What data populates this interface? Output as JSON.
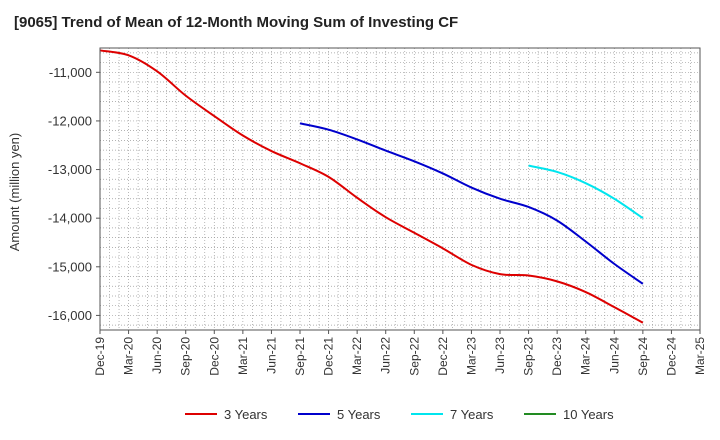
{
  "chart_data": {
    "type": "line",
    "title": "[9065]  Trend of Mean of 12-Month Moving Sum of Investing CF",
    "xlabel": "",
    "ylabel": "Amount (million yen)",
    "ylim": [
      -16300,
      -10500
    ],
    "yticks": [
      -11000,
      -12000,
      -13000,
      -14000,
      -15000,
      -16000
    ],
    "ytick_labels": [
      "-11,000",
      "-12,000",
      "-13,000",
      "-14,000",
      "-15,000",
      "-16,000"
    ],
    "x_ticks": [
      "Dec-19",
      "Mar-20",
      "Jun-20",
      "Sep-20",
      "Dec-20",
      "Mar-21",
      "Jun-21",
      "Sep-21",
      "Dec-21",
      "Mar-22",
      "Jun-22",
      "Sep-22",
      "Dec-22",
      "Mar-23",
      "Jun-23",
      "Sep-23",
      "Dec-23",
      "Mar-24",
      "Jun-24",
      "Sep-24",
      "Dec-24",
      "Mar-25"
    ],
    "grid": true,
    "legend_position": "bottom",
    "series": [
      {
        "name": "3 Years",
        "color": "#dd0000",
        "x": [
          "Dec-19",
          "Mar-20",
          "Jun-20",
          "Sep-20",
          "Dec-20",
          "Mar-21",
          "Jun-21",
          "Sep-21",
          "Dec-21",
          "Mar-22",
          "Jun-22",
          "Sep-22",
          "Dec-22",
          "Mar-23",
          "Jun-23",
          "Sep-23",
          "Dec-23",
          "Mar-24",
          "Jun-24",
          "Sep-24"
        ],
        "values": [
          -10550,
          -10650,
          -10980,
          -11480,
          -11900,
          -12300,
          -12620,
          -12870,
          -13150,
          -13580,
          -13980,
          -14300,
          -14620,
          -14960,
          -15150,
          -15180,
          -15300,
          -15520,
          -15830,
          -16150
        ]
      },
      {
        "name": "5 Years",
        "color": "#0000cc",
        "x": [
          "Sep-21",
          "Dec-21",
          "Mar-22",
          "Jun-22",
          "Sep-22",
          "Dec-22",
          "Mar-23",
          "Jun-23",
          "Sep-23",
          "Dec-23",
          "Mar-24",
          "Jun-24",
          "Sep-24"
        ],
        "values": [
          -12050,
          -12180,
          -12380,
          -12610,
          -12830,
          -13080,
          -13370,
          -13600,
          -13770,
          -14050,
          -14480,
          -14940,
          -15350
        ]
      },
      {
        "name": "7 Years",
        "color": "#00e5ee",
        "x": [
          "Sep-23",
          "Dec-23",
          "Mar-24",
          "Jun-24",
          "Sep-24"
        ],
        "values": [
          -12920,
          -13050,
          -13280,
          -13600,
          -14000
        ]
      },
      {
        "name": "10 Years",
        "color": "#228b22",
        "x": [],
        "values": []
      }
    ]
  }
}
